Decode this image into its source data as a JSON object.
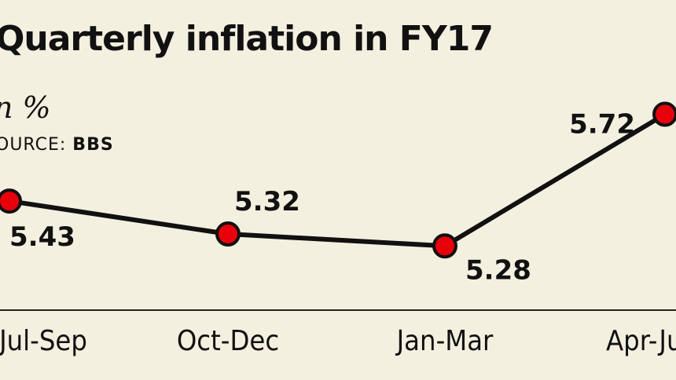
{
  "source": {
    "label": "OURCE:",
    "name": "BBS"
  },
  "chart_data": {
    "type": "line",
    "title": "Quarterly inflation in FY17",
    "subtitle": "n %",
    "categories": [
      "Jul-Sep",
      "Oct-Dec",
      "Jan-Mar",
      "Apr-Jun"
    ],
    "series": [
      {
        "values": [
          5.43,
          5.32,
          5.28,
          5.72
        ]
      }
    ],
    "data_labels": [
      "5.43",
      "5.32",
      "5.28",
      "5.72"
    ],
    "ylim": [
      5.0,
      5.85
    ],
    "grid": false,
    "colors": {
      "line": "#111111",
      "marker": "#e8000b",
      "marker_outline": "#111111",
      "axis": "#222222",
      "background": "#f4f0e0"
    }
  }
}
